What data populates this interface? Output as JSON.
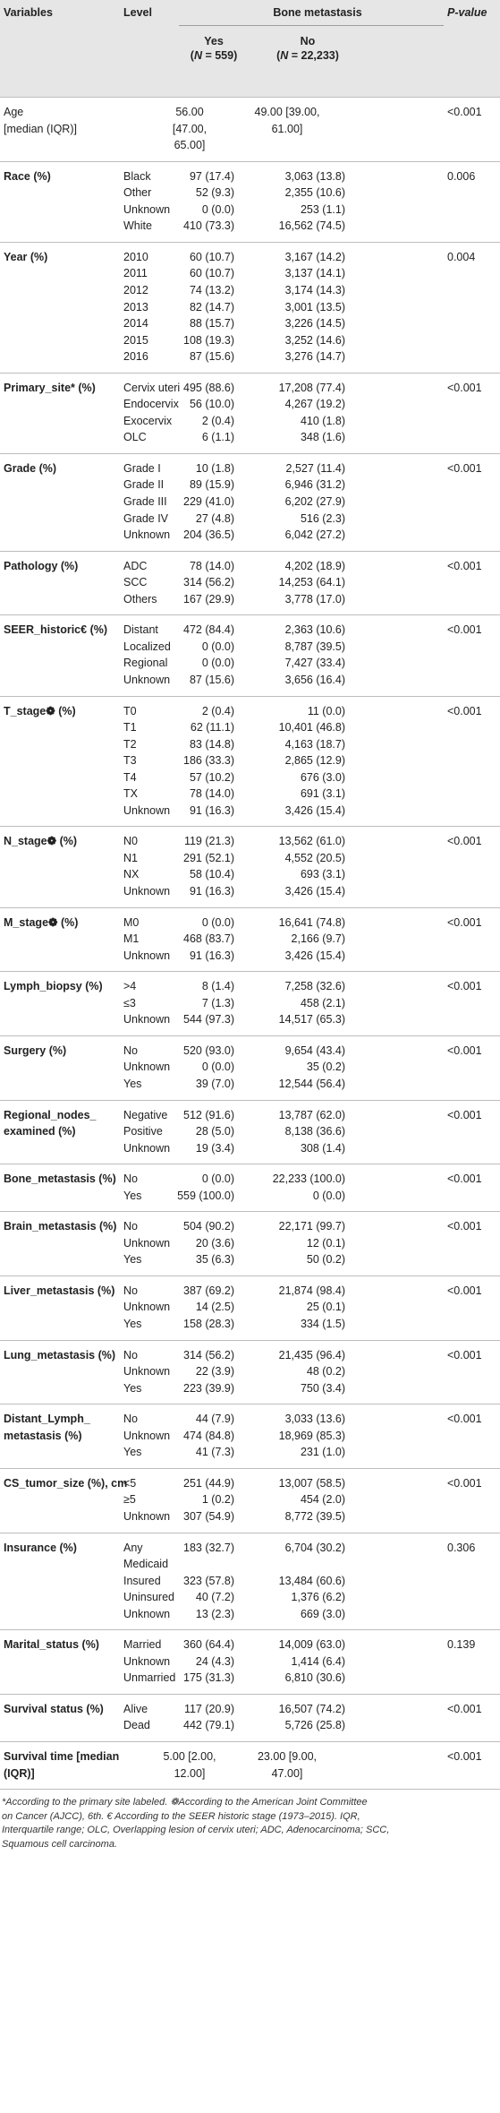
{
  "header": {
    "variables": "Variables",
    "level": "Level",
    "group": "Bone metastasis",
    "yes": "Yes",
    "yes_n": "(N = 559)",
    "no": "No",
    "no_n": "(N = 22,233)",
    "pvalue": "P-value"
  },
  "rows": [
    {
      "var": [
        "Age",
        "[median (IQR)]"
      ],
      "bold": false,
      "p": "<0.001",
      "levels": [
        {
          "label": "",
          "yes": [
            "56.00",
            "[47.00,",
            "65.00]"
          ],
          "no": [
            "49.00 [39.00,",
            "61.00]"
          ]
        }
      ]
    },
    {
      "var": [
        "Race (%)"
      ],
      "bold": true,
      "p": "0.006",
      "levels": [
        {
          "label": "Black",
          "yes": "97 (17.4)",
          "no": "3,063 (13.8)"
        },
        {
          "label": "Other",
          "yes": "52 (9.3)",
          "no": "2,355 (10.6)"
        },
        {
          "label": "Unknown",
          "yes": "0 (0.0)",
          "no": "253 (1.1)"
        },
        {
          "label": "White",
          "yes": "410 (73.3)",
          "no": "16,562 (74.5)"
        }
      ]
    },
    {
      "var": [
        "Year (%)"
      ],
      "bold": true,
      "p": "0.004",
      "levels": [
        {
          "label": "2010",
          "yes": "60 (10.7)",
          "no": "3,167 (14.2)"
        },
        {
          "label": "2011",
          "yes": "60 (10.7)",
          "no": "3,137 (14.1)"
        },
        {
          "label": "2012",
          "yes": "74 (13.2)",
          "no": "3,174 (14.3)"
        },
        {
          "label": "2013",
          "yes": "82 (14.7)",
          "no": "3,001 (13.5)"
        },
        {
          "label": "2014",
          "yes": "88 (15.7)",
          "no": "3,226 (14.5)"
        },
        {
          "label": "2015",
          "yes": "108 (19.3)",
          "no": "3,252 (14.6)"
        },
        {
          "label": "2016",
          "yes": "87 (15.6)",
          "no": "3,276 (14.7)"
        }
      ]
    },
    {
      "var": [
        "Primary_site* (%)"
      ],
      "bold": true,
      "p": "<0.001",
      "levels": [
        {
          "label": "Cervix uteri",
          "yes": "495 (88.6)",
          "no": "17,208 (77.4)"
        },
        {
          "label": "Endocervix",
          "yes": "56 (10.0)",
          "no": "4,267 (19.2)"
        },
        {
          "label": "Exocervix",
          "yes": "2 (0.4)",
          "no": "410 (1.8)"
        },
        {
          "label": "OLC",
          "yes": "6 (1.1)",
          "no": "348 (1.6)"
        }
      ]
    },
    {
      "var": [
        "Grade (%)"
      ],
      "bold": true,
      "p": "<0.001",
      "levels": [
        {
          "label": "Grade I",
          "yes": "10 (1.8)",
          "no": "2,527 (11.4)"
        },
        {
          "label": "Grade II",
          "yes": "89 (15.9)",
          "no": "6,946 (31.2)"
        },
        {
          "label": "Grade III",
          "yes": "229 (41.0)",
          "no": "6,202 (27.9)"
        },
        {
          "label": "Grade IV",
          "yes": "27 (4.8)",
          "no": "516 (2.3)"
        },
        {
          "label": "Unknown",
          "yes": "204 (36.5)",
          "no": "6,042 (27.2)"
        }
      ]
    },
    {
      "var": [
        "Pathology (%)"
      ],
      "bold": true,
      "p": "<0.001",
      "levels": [
        {
          "label": "ADC",
          "yes": "78 (14.0)",
          "no": "4,202 (18.9)"
        },
        {
          "label": "SCC",
          "yes": "314 (56.2)",
          "no": "14,253 (64.1)"
        },
        {
          "label": "Others",
          "yes": "167 (29.9)",
          "no": "3,778 (17.0)"
        }
      ]
    },
    {
      "var": [
        "SEER_historic€ (%)"
      ],
      "bold": true,
      "p": "<0.001",
      "levels": [
        {
          "label": "Distant",
          "yes": "472 (84.4)",
          "no": "2,363 (10.6)"
        },
        {
          "label": "Localized",
          "yes": "0 (0.0)",
          "no": "8,787 (39.5)"
        },
        {
          "label": "Regional",
          "yes": "0 (0.0)",
          "no": "7,427 (33.4)"
        },
        {
          "label": "Unknown",
          "yes": "87 (15.6)",
          "no": "3,656 (16.4)"
        }
      ]
    },
    {
      "var": [
        "T_stage❁ (%)"
      ],
      "bold": true,
      "p": "<0.001",
      "levels": [
        {
          "label": "T0",
          "yes": "2 (0.4)",
          "no": "11 (0.0)"
        },
        {
          "label": "T1",
          "yes": "62 (11.1)",
          "no": "10,401 (46.8)"
        },
        {
          "label": "T2",
          "yes": "83 (14.8)",
          "no": "4,163 (18.7)"
        },
        {
          "label": "T3",
          "yes": "186 (33.3)",
          "no": "2,865 (12.9)"
        },
        {
          "label": "T4",
          "yes": "57 (10.2)",
          "no": "676 (3.0)"
        },
        {
          "label": "TX",
          "yes": "78 (14.0)",
          "no": "691 (3.1)"
        },
        {
          "label": "Unknown",
          "yes": "91 (16.3)",
          "no": "3,426 (15.4)"
        }
      ]
    },
    {
      "var": [
        "N_stage❁ (%)"
      ],
      "bold": true,
      "p": "<0.001",
      "levels": [
        {
          "label": "N0",
          "yes": "119 (21.3)",
          "no": "13,562 (61.0)"
        },
        {
          "label": "N1",
          "yes": "291 (52.1)",
          "no": "4,552 (20.5)"
        },
        {
          "label": "NX",
          "yes": "58 (10.4)",
          "no": "693 (3.1)"
        },
        {
          "label": "Unknown",
          "yes": "91 (16.3)",
          "no": "3,426 (15.4)"
        }
      ]
    },
    {
      "var": [
        "M_stage❁ (%)"
      ],
      "bold": true,
      "p": "<0.001",
      "levels": [
        {
          "label": "M0",
          "yes": "0 (0.0)",
          "no": "16,641 (74.8)"
        },
        {
          "label": "M1",
          "yes": "468 (83.7)",
          "no": "2,166 (9.7)"
        },
        {
          "label": "Unknown",
          "yes": "91 (16.3)",
          "no": "3,426 (15.4)"
        }
      ]
    },
    {
      "var": [
        "Lymph_biopsy (%)"
      ],
      "bold": true,
      "p": "<0.001",
      "levels": [
        {
          "label": ">4",
          "yes": "8 (1.4)",
          "no": "7,258 (32.6)"
        },
        {
          "label": "≤3",
          "yes": "7 (1.3)",
          "no": "458 (2.1)"
        },
        {
          "label": "Unknown",
          "yes": "544 (97.3)",
          "no": "14,517 (65.3)"
        }
      ]
    },
    {
      "var": [
        "Surgery (%)"
      ],
      "bold": true,
      "p": "<0.001",
      "levels": [
        {
          "label": "No",
          "yes": "520 (93.0)",
          "no": "9,654 (43.4)"
        },
        {
          "label": "Unknown",
          "yes": "0 (0.0)",
          "no": "35 (0.2)"
        },
        {
          "label": "Yes",
          "yes": "39 (7.0)",
          "no": "12,544 (56.4)"
        }
      ]
    },
    {
      "var": [
        "Regional_nodes_",
        "examined (%)"
      ],
      "bold": true,
      "p": "<0.001",
      "levels": [
        {
          "label": "Negative",
          "yes": "512 (91.6)",
          "no": "13,787 (62.0)"
        },
        {
          "label": "Positive",
          "yes": "28 (5.0)",
          "no": "8,138 (36.6)"
        },
        {
          "label": "Unknown",
          "yes": "19 (3.4)",
          "no": "308 (1.4)"
        }
      ]
    },
    {
      "var": [
        "Bone_metastasis (%)"
      ],
      "bold": true,
      "p": "<0.001",
      "levels": [
        {
          "label": "No",
          "yes": "0 (0.0)",
          "no": "22,233 (100.0)"
        },
        {
          "label": "Yes",
          "yes": "559 (100.0)",
          "no": "0 (0.0)"
        }
      ]
    },
    {
      "var": [
        "Brain_metastasis (%)"
      ],
      "bold": true,
      "p": "<0.001",
      "levels": [
        {
          "label": "No",
          "yes": "504 (90.2)",
          "no": "22,171 (99.7)"
        },
        {
          "label": "Unknown",
          "yes": "20 (3.6)",
          "no": "12 (0.1)"
        },
        {
          "label": "Yes",
          "yes": "35 (6.3)",
          "no": "50 (0.2)"
        }
      ]
    },
    {
      "var": [
        "Liver_metastasis (%)"
      ],
      "bold": true,
      "p": "<0.001",
      "levels": [
        {
          "label": "No",
          "yes": "387 (69.2)",
          "no": "21,874 (98.4)"
        },
        {
          "label": "Unknown",
          "yes": "14 (2.5)",
          "no": "25 (0.1)"
        },
        {
          "label": "Yes",
          "yes": "158 (28.3)",
          "no": "334 (1.5)"
        }
      ]
    },
    {
      "var": [
        "Lung_metastasis (%)"
      ],
      "bold": true,
      "p": "<0.001",
      "levels": [
        {
          "label": "No",
          "yes": "314 (56.2)",
          "no": "21,435 (96.4)"
        },
        {
          "label": "Unknown",
          "yes": "22 (3.9)",
          "no": "48 (0.2)"
        },
        {
          "label": "Yes",
          "yes": "223 (39.9)",
          "no": "750 (3.4)"
        }
      ]
    },
    {
      "var": [
        "Distant_Lymph_",
        "metastasis (%)"
      ],
      "bold": true,
      "p": "<0.001",
      "levels": [
        {
          "label": "No",
          "yes": "44 (7.9)",
          "no": "3,033 (13.6)"
        },
        {
          "label": "Unknown",
          "yes": "474 (84.8)",
          "no": "18,969 (85.3)"
        },
        {
          "label": "Yes",
          "yes": "41 (7.3)",
          "no": "231 (1.0)"
        }
      ]
    },
    {
      "var": [
        "CS_tumor_size (%), cm"
      ],
      "bold": true,
      "p": "<0.001",
      "levels": [
        {
          "label": "<5",
          "yes": "251 (44.9)",
          "no": "13,007 (58.5)"
        },
        {
          "label": "≥5",
          "yes": "1 (0.2)",
          "no": "454 (2.0)"
        },
        {
          "label": "Unknown",
          "yes": "307 (54.9)",
          "no": "8,772 (39.5)"
        }
      ]
    },
    {
      "var": [
        "Insurance (%)"
      ],
      "bold": true,
      "p": "0.306",
      "levels": [
        {
          "label": [
            "Any",
            "Medicaid"
          ],
          "yes": "183 (32.7)",
          "no": "6,704 (30.2)"
        },
        {
          "label": "Insured",
          "yes": "323 (57.8)",
          "no": "13,484 (60.6)"
        },
        {
          "label": "Uninsured",
          "yes": "40 (7.2)",
          "no": "1,376 (6.2)"
        },
        {
          "label": "Unknown",
          "yes": "13 (2.3)",
          "no": "669 (3.0)"
        }
      ]
    },
    {
      "var": [
        "Marital_status (%)"
      ],
      "bold": true,
      "p": "0.139",
      "levels": [
        {
          "label": "Married",
          "yes": "360 (64.4)",
          "no": "14,009 (63.0)"
        },
        {
          "label": "Unknown",
          "yes": "24 (4.3)",
          "no": "1,414 (6.4)"
        },
        {
          "label": "Unmarried",
          "yes": "175 (31.3)",
          "no": "6,810 (30.6)"
        }
      ]
    },
    {
      "var": [
        "Survival status (%)"
      ],
      "bold": true,
      "p": "<0.001",
      "levels": [
        {
          "label": "Alive",
          "yes": "117 (20.9)",
          "no": "16,507 (74.2)"
        },
        {
          "label": "Dead",
          "yes": "442 (79.1)",
          "no": "5,726 (25.8)"
        }
      ]
    },
    {
      "var": [
        "Survival time [median",
        "(IQR)]"
      ],
      "bold": true,
      "p": "<0.001",
      "levels": [
        {
          "label": "",
          "yes": [
            "5.00 [2.00,",
            "12.00]"
          ],
          "no": [
            "23.00 [9.00,",
            "47.00]"
          ]
        }
      ]
    }
  ],
  "footnote": [
    "*According to the primary site labeled. ❁According to the American Joint Committee",
    "on Cancer (AJCC), 6th. € According to the SEER historic stage (1973–2015). IQR,",
    "Interquartile range; OLC, Overlapping lesion of cervix uteri; ADC, Adenocarcinoma; SCC,",
    "Squamous cell carcinoma."
  ]
}
